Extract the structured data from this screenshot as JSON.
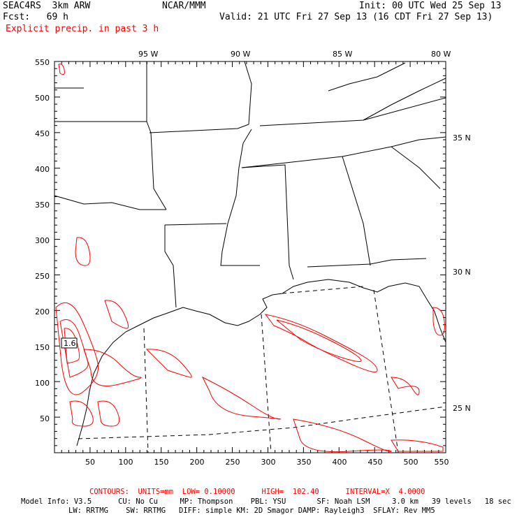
{
  "header": {
    "model": "SEAC4RS  3km ARW",
    "org": "NCAR/MMM",
    "init": "Init: 00 UTC Wed 25 Sep 13",
    "fcst": "Fcst:   69 h",
    "valid": "Valid: 21 UTC Fri 27 Sep 13 (16 CDT Fri 27 Sep 13)",
    "field": "Explicit precip. in past 3 h"
  },
  "map": {
    "top_lon_labels": [
      "95 W",
      "90 W",
      "85 W",
      "80 W"
    ],
    "right_lat_labels": [
      "35 N",
      "30 N",
      "25 N"
    ],
    "y_ticks": [
      "550",
      "500",
      "450",
      "400",
      "350",
      "300",
      "250",
      "200",
      "150",
      "100",
      "50"
    ],
    "x_ticks": [
      "50",
      "100",
      "150",
      "200",
      "250",
      "300",
      "350",
      "400",
      "450",
      "500",
      "550"
    ],
    "contour_label": "1.6",
    "colors": {
      "contour": "#ff0000",
      "boundary": "#000000",
      "background": "#ffffff"
    }
  },
  "footer": {
    "contours": "CONTOURS:  UNITS=mm  LOW= 0.10000      HIGH=  102.40      INTERVAL=X  4.0000",
    "model_info_1": "Model Info: V3.5      CU: No Cu     MP: Thompson    PBL: YSU       SF: Noah LSM     3.0 km   39 levels   18 sec",
    "model_info_2": "LW: RRTMG    SW: RRTMG   DIFF: simple KM: 2D Smagor DAMP: Rayleigh3  SFLAY: Rev MM5"
  }
}
